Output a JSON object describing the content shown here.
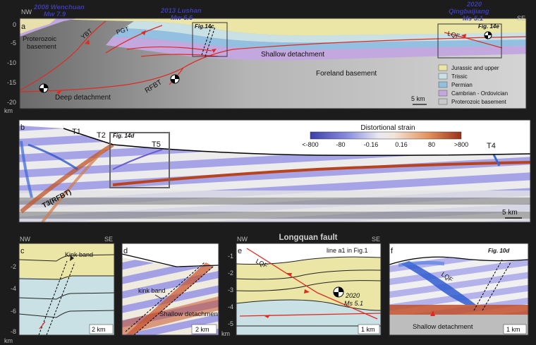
{
  "panel_a": {
    "letter": "a",
    "nw": "NW",
    "se": "SE",
    "events": [
      {
        "line1": "2008 Wenchuan",
        "line2": "Mw 7.9"
      },
      {
        "line1": "2013 Lushan",
        "line2": "Mw 6.6"
      },
      {
        "line1": "2020",
        "line2": "Qingbaijiang",
        "line3": "Ms 5.1"
      }
    ],
    "y_ticks": [
      "0",
      "-5",
      "-10",
      "-15",
      "-20"
    ],
    "y_unit": "km",
    "labels": {
      "proterozoic": "Proterozoic",
      "basement": "basement",
      "ybt": "YBT",
      "pgt": "PGT",
      "fig14c": "Fig.14c",
      "fig14e": "Fig. 14e",
      "lqf": "LQF",
      "shallow": "Shallow detachment",
      "foreland": "Foreland basement",
      "rfbt": "RFBT",
      "deep": "Deep detachment",
      "scale": "5 km"
    },
    "legend": [
      {
        "label": "Jurassic and upper",
        "color": "#ece6a6"
      },
      {
        "label": "Trissic",
        "color": "#c9e0e5"
      },
      {
        "label": "Permian",
        "color": "#93bfe0"
      },
      {
        "label": "Cambrian - Ordovician",
        "color": "#c3a8e0"
      },
      {
        "label": "Proterozoic basement",
        "color": "#c9c9c9"
      }
    ]
  },
  "panel_b": {
    "letter": "b",
    "colorbar_title": "Distortional strain",
    "colorbar_ticks": [
      "<-800",
      "-80",
      "-0.16",
      "0.16",
      "80",
      ">800"
    ],
    "labels": {
      "t1": "T1",
      "t2": "T2",
      "t3": "T3(RFBT)",
      "t4": "T4",
      "t5": "T5",
      "fig14d": "Fig. 14d",
      "scale": "5 km"
    }
  },
  "panel_c": {
    "letter": "c",
    "nw": "NW",
    "se": "SE",
    "y_ticks": [
      "-2",
      "-4",
      "-6",
      "-8"
    ],
    "y_unit": "km",
    "kink": "Kink band",
    "scale": "2 km"
  },
  "panel_d": {
    "letter": "d",
    "kink": "kink band",
    "shallow": "Shallow detachment",
    "scale": "2 km"
  },
  "panel_e": {
    "letter": "e",
    "nw": "NW",
    "se": "SE",
    "title": "Longquan fault",
    "subtitle": "line a1 in Fig.1",
    "lqf": "LQF",
    "event_line1": "2020",
    "event_line2": "Ms 5.1",
    "y_ticks": [
      "-1",
      "-2",
      "-3",
      "-4",
      "-5"
    ],
    "y_unit": "km",
    "scale": "1 km"
  },
  "panel_f": {
    "letter": "f",
    "fig": "Fig. 10d",
    "lqf": "LQF",
    "shallow": "Shallow detachment",
    "scale": "1 km"
  }
}
